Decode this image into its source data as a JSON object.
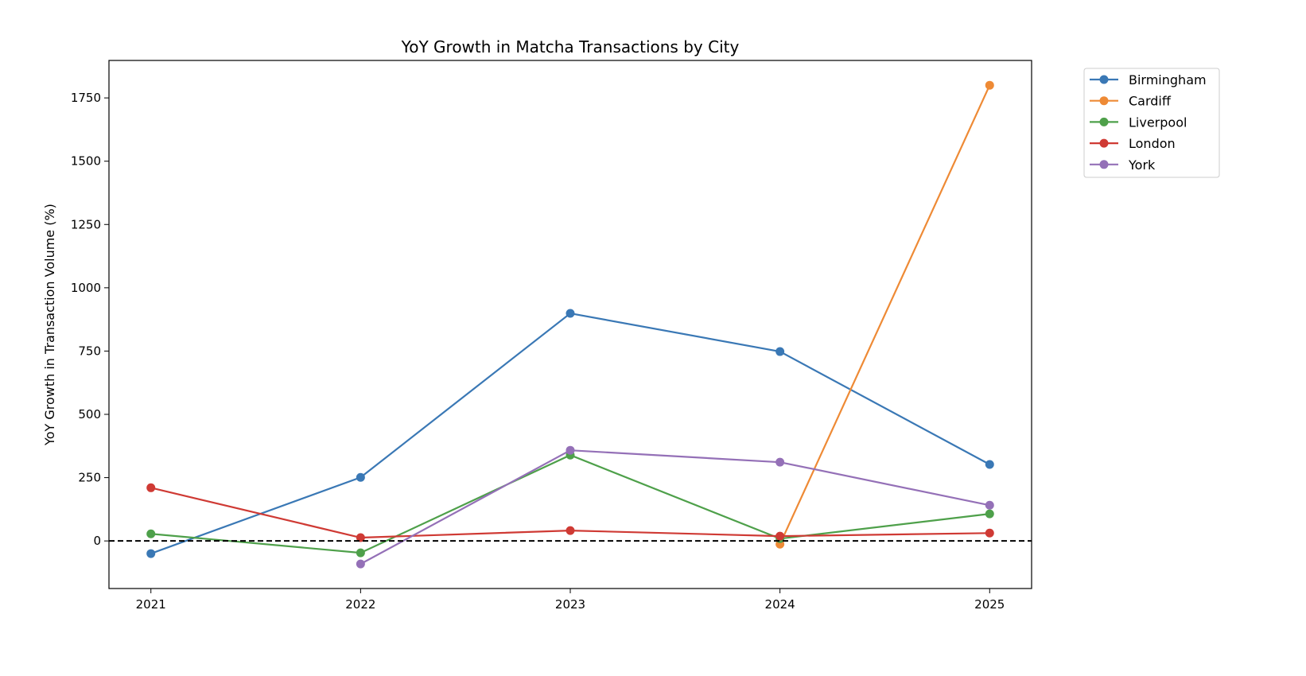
{
  "chart_data": {
    "type": "line",
    "title": "YoY Growth in Matcha Transactions by City",
    "xlabel": "",
    "ylabel": "YoY Growth in Transaction Volume (%)",
    "x": [
      2021,
      2022,
      2023,
      2024,
      2025
    ],
    "x_tick_labels": [
      "2021",
      "2022",
      "2023",
      "2024",
      "2025"
    ],
    "y_ticks": [
      0,
      250,
      500,
      750,
      1000,
      1250,
      1500,
      1750
    ],
    "y_tick_labels": [
      "0",
      "250",
      "500",
      "750",
      "1000",
      "1250",
      "1500",
      "1750"
    ],
    "ylim": [
      -188,
      1898
    ],
    "xlim": [
      2020.8,
      2025.2
    ],
    "grid": false,
    "legend_placement": "outside-top-right",
    "reference_line": {
      "y": 0,
      "style": "dashed",
      "color": "#000000"
    },
    "series": [
      {
        "name": "Birmingham",
        "color": "#3a78b5",
        "values": [
          -50,
          251,
          899,
          748,
          302
        ]
      },
      {
        "name": "Cardiff",
        "color": "#ee8a35",
        "values": [
          null,
          null,
          null,
          -13,
          1800
        ]
      },
      {
        "name": "Liverpool",
        "color": "#4ea04a",
        "values": [
          28,
          -47,
          339,
          9,
          107
        ]
      },
      {
        "name": "London",
        "color": "#cf3a34",
        "values": [
          210,
          13,
          41,
          19,
          31
        ]
      },
      {
        "name": "York",
        "color": "#9470b7",
        "values": [
          null,
          -91,
          358,
          311,
          141
        ]
      }
    ]
  }
}
